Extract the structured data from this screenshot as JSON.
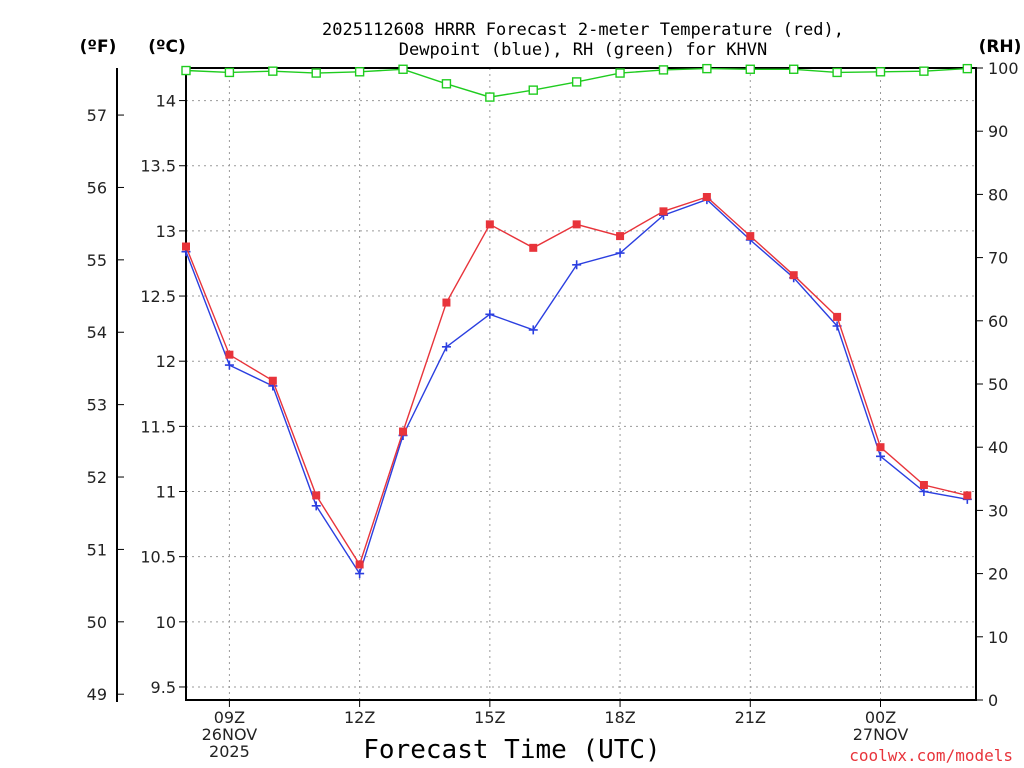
{
  "chart_data": {
    "type": "line",
    "title_line1": "2025112608 HRRR Forecast 2-meter Temperature (red),",
    "title_line2": "Dewpoint (blue), RH (green) for KHVN",
    "xlabel": "Forecast Time (UTC)",
    "credit": "coolwx.com/models",
    "units": {
      "fahrenheit": "(ºF)",
      "celsius": "(ºC)",
      "rh": "(RH)"
    },
    "x_hours": [
      8,
      9,
      10,
      11,
      12,
      13,
      14,
      15,
      16,
      17,
      18,
      19,
      20,
      21,
      22,
      23,
      24,
      25,
      26
    ],
    "x_range": [
      8,
      26.2
    ],
    "x_ticks": [
      {
        "hour": 9,
        "lines": [
          "09Z",
          "26NOV",
          "2025"
        ]
      },
      {
        "hour": 12,
        "lines": [
          "12Z"
        ]
      },
      {
        "hour": 15,
        "lines": [
          "15Z"
        ]
      },
      {
        "hour": 18,
        "lines": [
          "18Z"
        ]
      },
      {
        "hour": 21,
        "lines": [
          "21Z"
        ]
      },
      {
        "hour": 24,
        "lines": [
          "00Z",
          "27NOV"
        ]
      }
    ],
    "celsius_range": [
      9.4,
      14.25
    ],
    "celsius_ticks": [
      "9.5",
      "10",
      "10.5",
      "11",
      "11.5",
      "12",
      "12.5",
      "13",
      "13.5",
      "14"
    ],
    "fahrenheit_ticks": [
      "49",
      "50",
      "51",
      "52",
      "53",
      "54",
      "55",
      "56",
      "57"
    ],
    "rh_range": [
      0,
      100
    ],
    "rh_ticks": [
      "0",
      "10",
      "20",
      "30",
      "40",
      "50",
      "60",
      "70",
      "80",
      "90",
      "100"
    ],
    "series": [
      {
        "name": "Temperature",
        "axis": "celsius",
        "color": "#e8343b",
        "marker": "filled-square",
        "values": [
          12.88,
          12.05,
          11.85,
          10.97,
          10.44,
          11.46,
          12.45,
          13.05,
          12.87,
          13.05,
          12.96,
          13.15,
          13.26,
          12.96,
          12.66,
          12.34,
          11.34,
          11.05,
          10.97
        ]
      },
      {
        "name": "Dewpoint",
        "axis": "celsius",
        "color": "#2b3fe0",
        "marker": "plus",
        "values": [
          12.84,
          11.97,
          11.81,
          10.89,
          10.37,
          11.43,
          12.11,
          12.36,
          12.24,
          12.74,
          12.83,
          13.12,
          13.24,
          12.93,
          12.64,
          12.27,
          11.27,
          11.0,
          10.94
        ]
      },
      {
        "name": "RH",
        "axis": "rh",
        "color": "#1fcc1f",
        "marker": "hollow-square",
        "values": [
          99.6,
          99.3,
          99.5,
          99.2,
          99.4,
          99.8,
          97.5,
          95.4,
          96.5,
          97.8,
          99.2,
          99.7,
          99.9,
          99.8,
          99.8,
          99.3,
          99.4,
          99.5,
          99.9
        ]
      }
    ]
  }
}
